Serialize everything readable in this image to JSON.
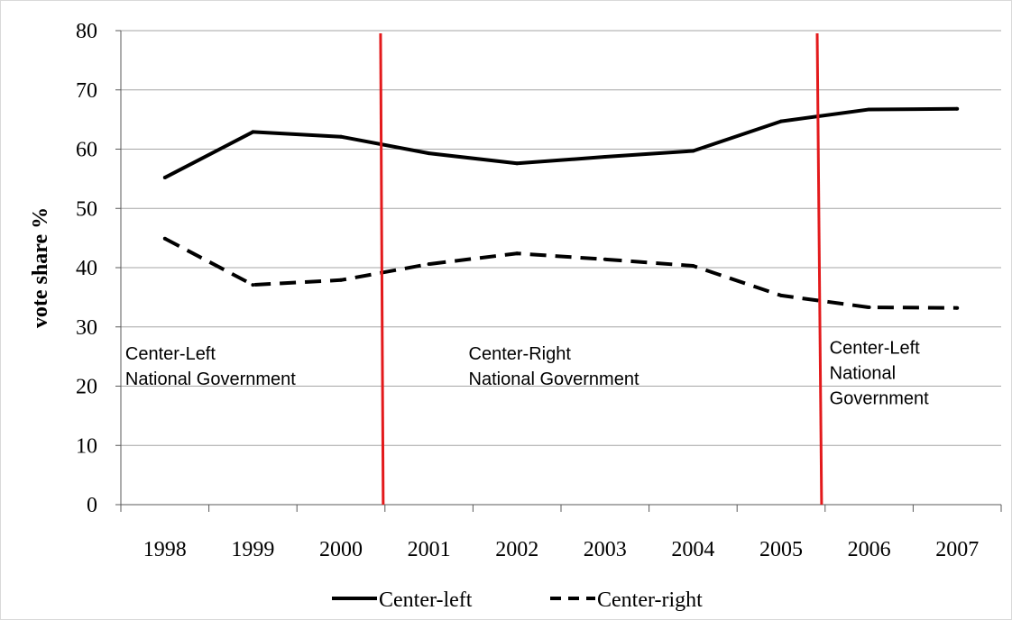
{
  "chart_data": {
    "type": "line",
    "title": "",
    "xlabel": "",
    "ylabel": "vote share %",
    "categories": [
      "1998",
      "1999",
      "2000",
      "2001",
      "2002",
      "2003",
      "2004",
      "2005",
      "2006",
      "2007"
    ],
    "ylim": [
      0,
      80
    ],
    "yticks": [
      0,
      10,
      20,
      30,
      40,
      50,
      60,
      70,
      80
    ],
    "grid": "horizontal",
    "legend": "bottom",
    "series": [
      {
        "name": "Center-left",
        "style": "solid",
        "color": "#000000",
        "values": [
          55.2,
          62.9,
          62.1,
          59.3,
          57.6,
          58.7,
          59.7,
          64.7,
          66.7,
          66.8
        ]
      },
      {
        "name": "Center-right",
        "style": "dashed",
        "color": "#000000",
        "values": [
          44.9,
          37.1,
          37.9,
          40.6,
          42.4,
          41.4,
          40.3,
          35.3,
          33.3,
          33.2
        ]
      }
    ],
    "vertical_lines": [
      {
        "x_top": 2000.45,
        "x_bottom": 2000.48,
        "color": "#e31a1c"
      },
      {
        "x_top": 2005.41,
        "x_bottom": 2005.46,
        "color": "#e31a1c"
      }
    ],
    "annotations": [
      {
        "lines": [
          "Center-Left",
          "National Government"
        ],
        "x": 1997.55,
        "y": 24.5
      },
      {
        "lines": [
          "Center-Right",
          "National Government"
        ],
        "x": 2001.45,
        "y": 24.5
      },
      {
        "lines": [
          "Center-Left",
          "National",
          "Government"
        ],
        "x": 2005.55,
        "y": 25.5
      }
    ]
  }
}
